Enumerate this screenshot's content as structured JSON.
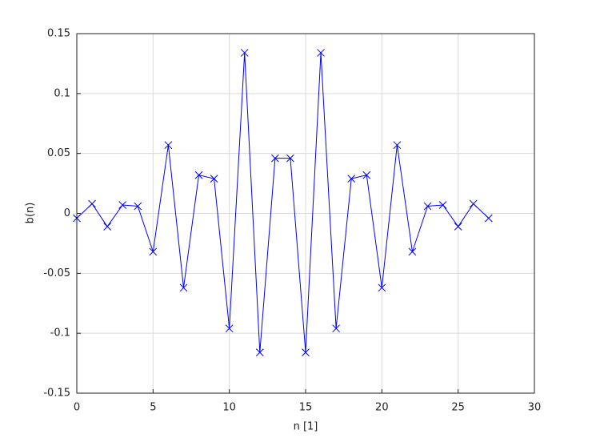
{
  "chart_data": {
    "type": "line",
    "xlabel": "n [1]",
    "ylabel": "b(n)",
    "x": [
      0,
      1,
      2,
      3,
      4,
      5,
      6,
      7,
      8,
      9,
      10,
      11,
      12,
      13,
      14,
      15,
      16,
      17,
      18,
      19,
      20,
      21,
      22,
      23,
      24,
      25,
      26,
      27
    ],
    "values": [
      -0.004,
      0.008,
      -0.011,
      0.007,
      0.006,
      -0.032,
      0.057,
      -0.062,
      0.032,
      0.029,
      -0.096,
      0.134,
      -0.116,
      0.046,
      0.046,
      -0.116,
      0.134,
      -0.096,
      0.029,
      0.032,
      -0.062,
      0.057,
      -0.032,
      0.006,
      0.007,
      -0.011,
      0.008,
      -0.004
    ],
    "color": "#0000ff",
    "marker": "x",
    "xlim": [
      0,
      30
    ],
    "xticks": [
      0,
      5,
      10,
      15,
      20,
      25,
      30
    ],
    "ylim": [
      -0.15,
      0.15
    ],
    "yticks": [
      -0.15,
      -0.1,
      -0.05,
      0,
      0.05,
      0.1,
      0.15
    ],
    "grid": true
  }
}
